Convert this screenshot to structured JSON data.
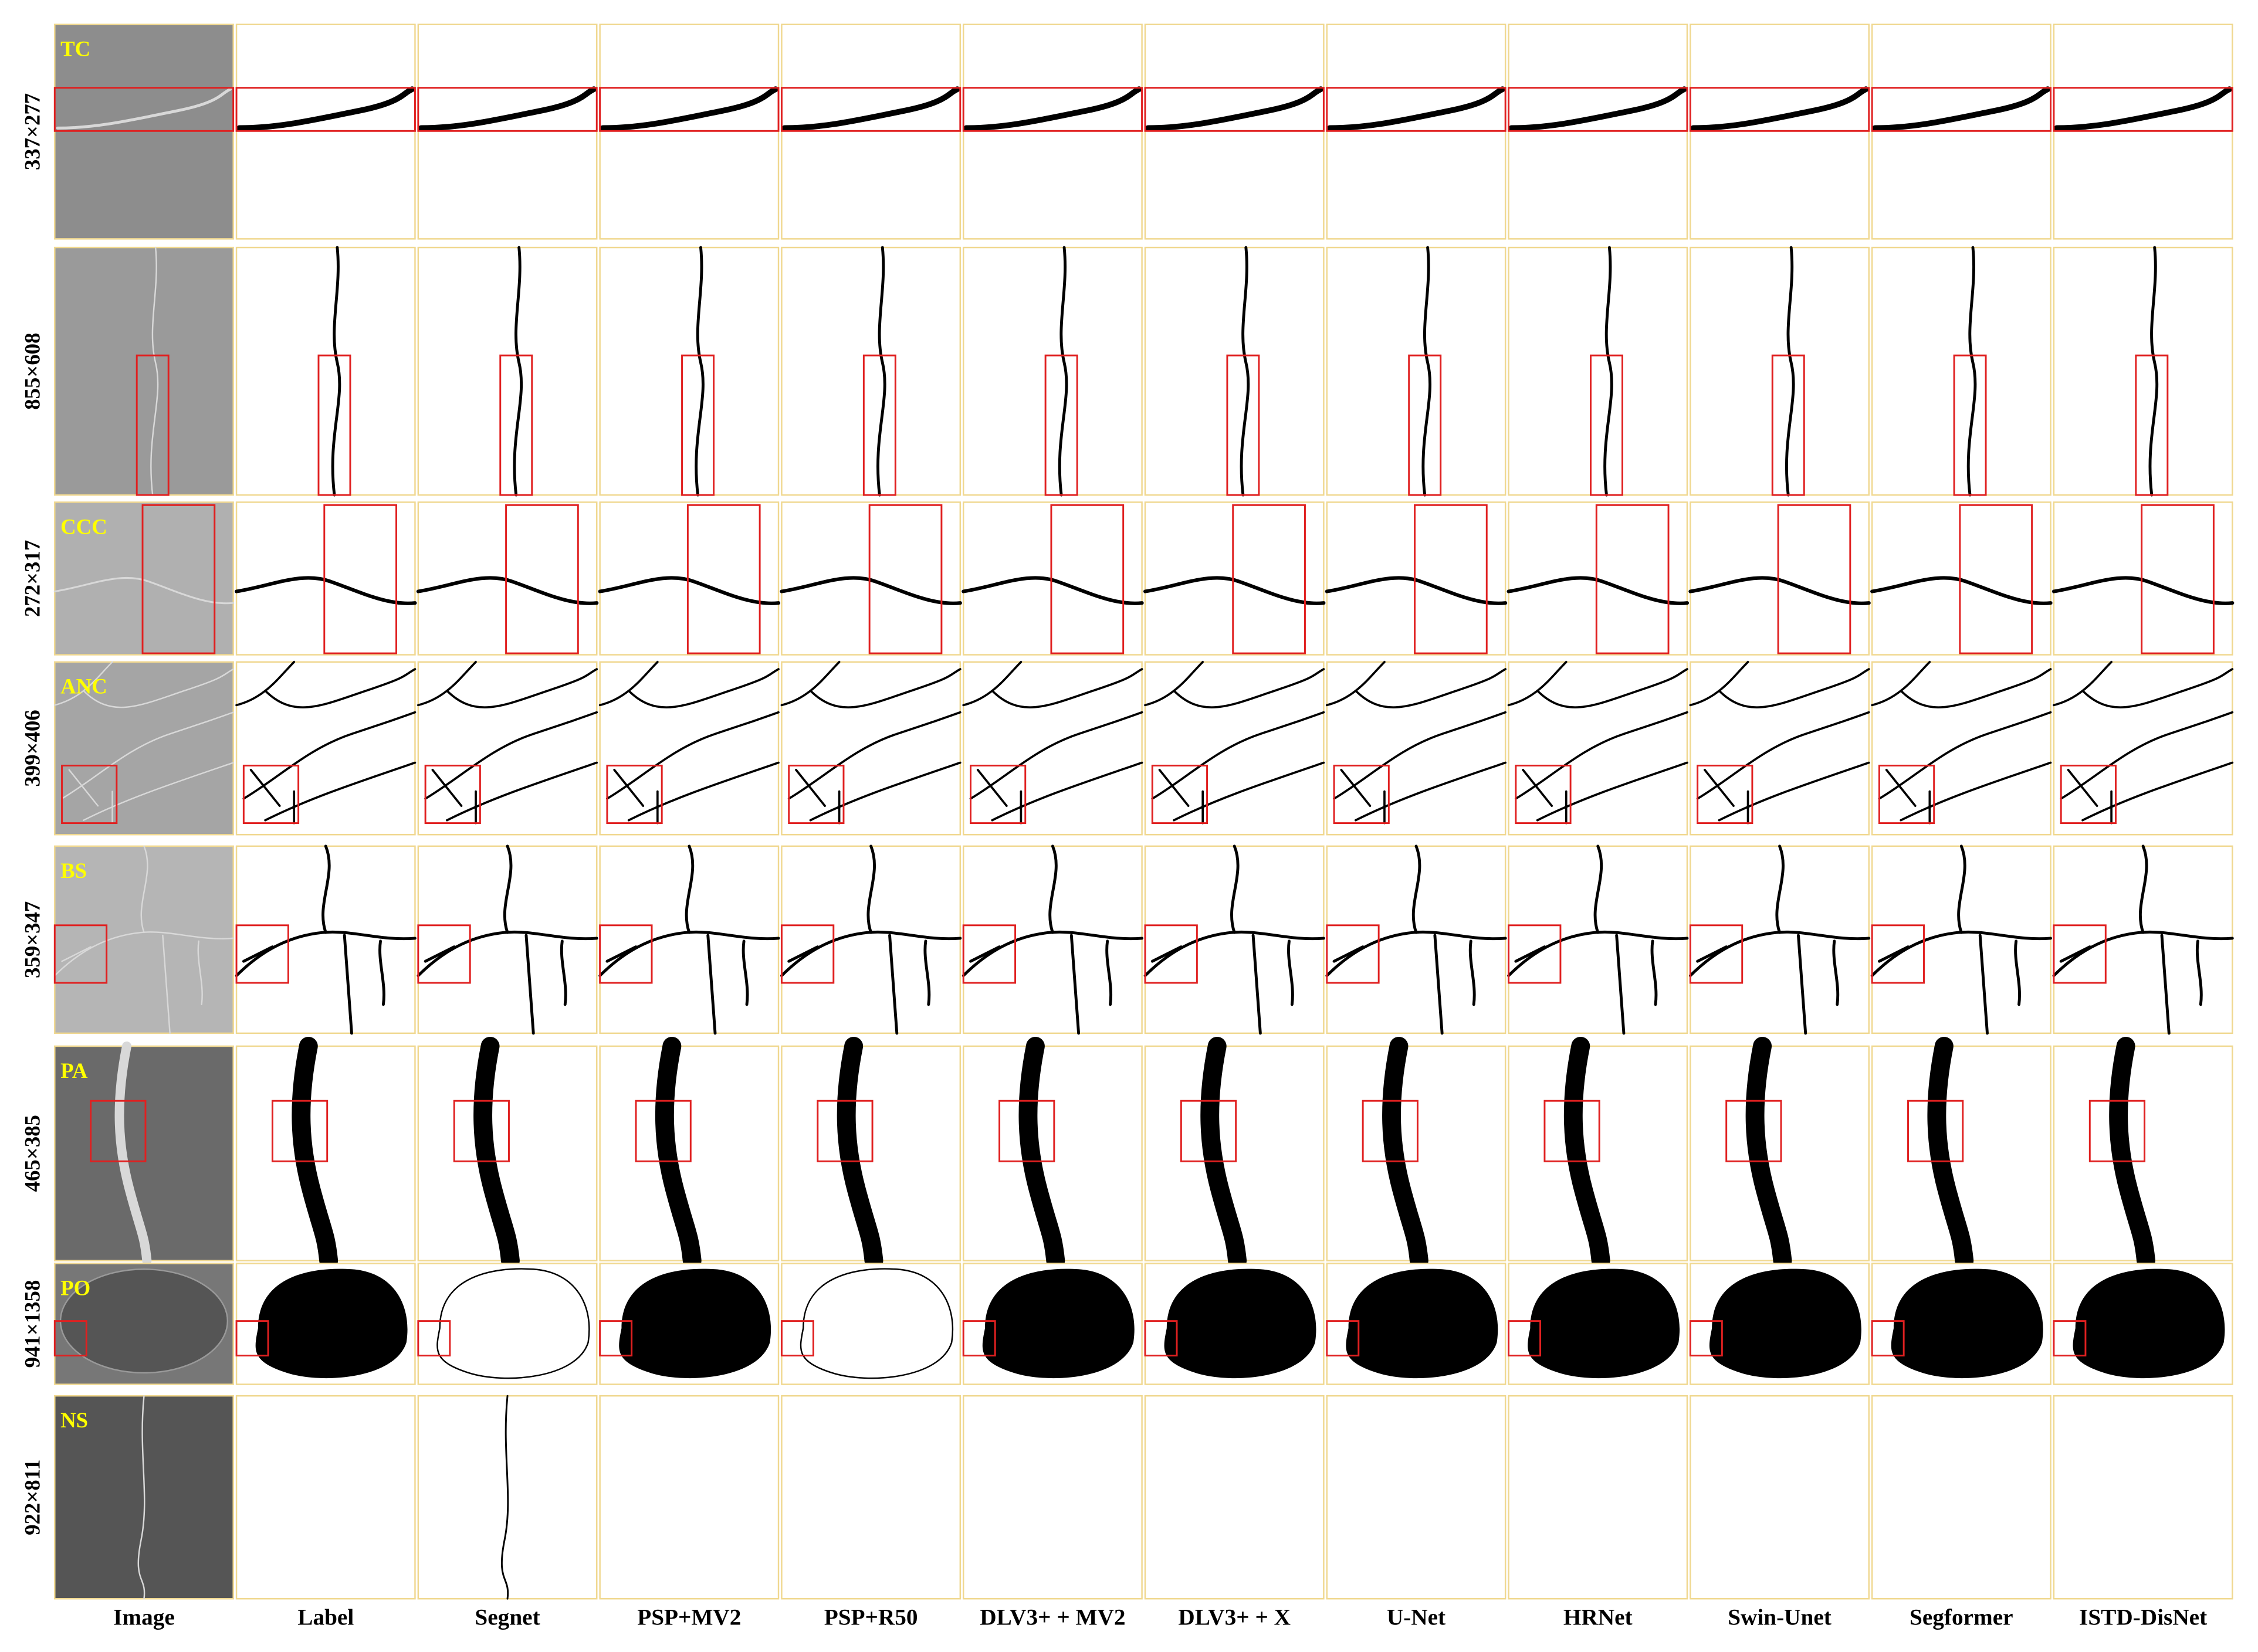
{
  "columns": [
    "Image",
    "Label",
    "Segnet",
    "PSP+MV2",
    "PSP+R50",
    "DLV3+ + MV2",
    "DLV3+ + X",
    "U-Net",
    "HRNet",
    "Swin-Unet",
    "Segformer",
    "ISTD-DisNet"
  ],
  "rows": [
    {
      "class": "TC",
      "size": "337×277"
    },
    {
      "class": "",
      "size": "855×608"
    },
    {
      "class": "CCC",
      "size": "272×317"
    },
    {
      "class": "ANC",
      "size": "399×406"
    },
    {
      "class": "BS",
      "size": "359×347"
    },
    {
      "class": "PA",
      "size": "465×385"
    },
    {
      "class": "PO",
      "size": "941×1358"
    },
    {
      "class": "NS",
      "size": "922×811"
    }
  ]
}
